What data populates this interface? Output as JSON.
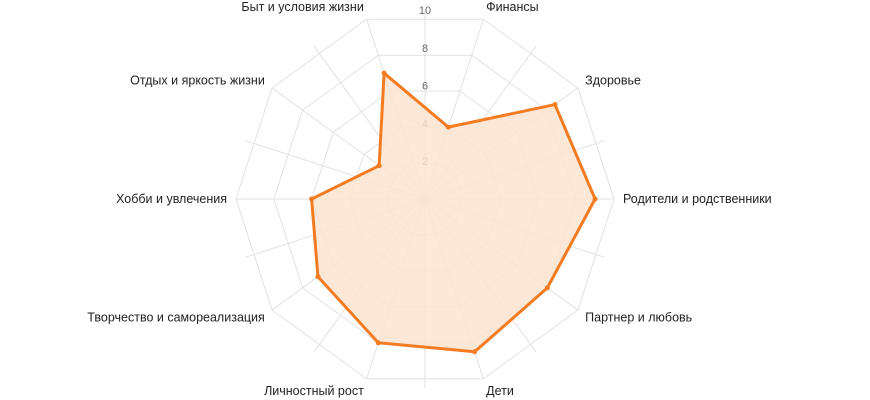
{
  "chart_data": {
    "type": "radar",
    "categories": [
      "Финансы",
      "Здоровье",
      "Родители и родственники",
      "Партнер и любовь",
      "Дети",
      "Личностный рост",
      "Творчество и самореализация",
      "Хобби и увлечения",
      "Отдых и яркость жизни",
      "Быт и условия жизни"
    ],
    "series": [
      {
        "values": [
          4,
          8.5,
          9,
          8,
          8.5,
          8,
          7,
          6,
          3,
          7
        ]
      }
    ],
    "range": [
      0,
      10
    ],
    "ticks": [
      "2",
      "4",
      "6",
      "8",
      "10"
    ],
    "grid": true,
    "legend": "none",
    "colors": {
      "stroke": "#f37c22",
      "fill": "#fde3cf",
      "grid": "#e2e2e2"
    }
  }
}
